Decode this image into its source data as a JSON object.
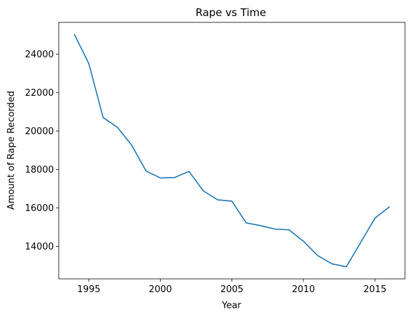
{
  "chart_data": {
    "type": "line",
    "title": "Rape vs Time",
    "xlabel": "Year",
    "ylabel": "Amount of Rape Recorded",
    "xlim": [
      1992.9,
      2017.1
    ],
    "ylim": [
      12310,
      25650
    ],
    "xticks": [
      1995,
      2000,
      2005,
      2010,
      2015
    ],
    "yticks": [
      14000,
      16000,
      18000,
      20000,
      22000,
      24000
    ],
    "grid": false,
    "series": [
      {
        "color": "#1f77b4",
        "x": [
          1994,
          1995,
          1996,
          1997,
          1998,
          1999,
          2000,
          2001,
          2002,
          2003,
          2004,
          2005,
          2006,
          2007,
          2008,
          2009,
          2010,
          2011,
          2012,
          2013,
          2014,
          2015,
          2016
        ],
        "y": [
          25010,
          23510,
          20700,
          20190,
          19260,
          17920,
          17560,
          17580,
          17900,
          16890,
          16420,
          16350,
          15220,
          15080,
          14900,
          14860,
          14270,
          13520,
          13090,
          12940,
          14200,
          15470,
          16050
        ]
      }
    ]
  }
}
